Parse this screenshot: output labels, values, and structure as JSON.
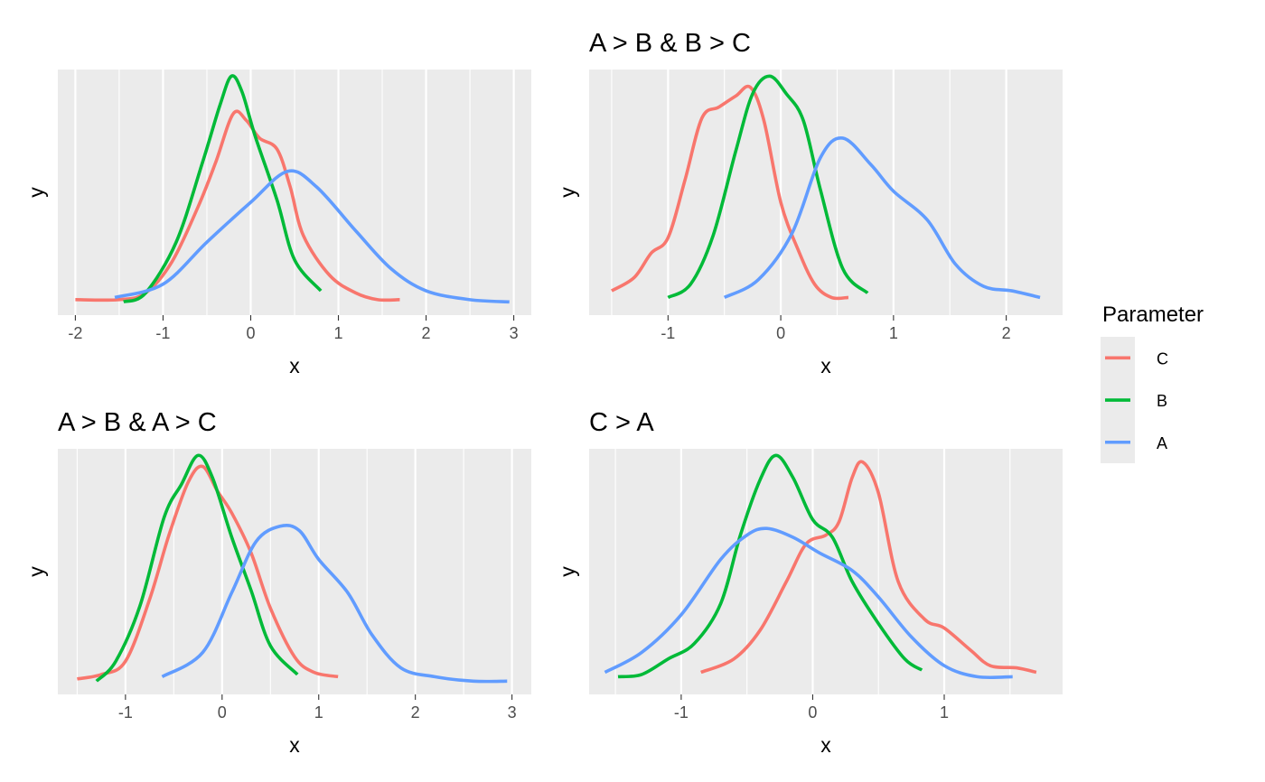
{
  "chart_data": {
    "type": "line",
    "facets": [
      {
        "title": "",
        "xlabel": "x",
        "ylabel": "y",
        "xlim": [
          -2.2,
          3.2
        ],
        "ylim": [
          -0.06,
          1.05
        ],
        "xticks": [
          -2,
          -1,
          0,
          1,
          2,
          3
        ],
        "series": [
          {
            "name": "C",
            "color": "#F8766D",
            "points": [
              [
                -2.0,
                0.01
              ],
              [
                -1.5,
                0.01
              ],
              [
                -1.2,
                0.04
              ],
              [
                -0.9,
                0.18
              ],
              [
                -0.6,
                0.43
              ],
              [
                -0.4,
                0.63
              ],
              [
                -0.2,
                0.85
              ],
              [
                -0.05,
                0.82
              ],
              [
                0.1,
                0.74
              ],
              [
                0.3,
                0.69
              ],
              [
                0.45,
                0.52
              ],
              [
                0.6,
                0.3
              ],
              [
                0.9,
                0.12
              ],
              [
                1.2,
                0.04
              ],
              [
                1.45,
                0.01
              ],
              [
                1.7,
                0.01
              ]
            ]
          },
          {
            "name": "B",
            "color": "#00BA38",
            "points": [
              [
                -1.45,
                0.0
              ],
              [
                -1.2,
                0.04
              ],
              [
                -0.85,
                0.27
              ],
              [
                -0.55,
                0.63
              ],
              [
                -0.35,
                0.89
              ],
              [
                -0.22,
                1.02
              ],
              [
                -0.1,
                0.95
              ],
              [
                0.05,
                0.75
              ],
              [
                0.3,
                0.46
              ],
              [
                0.5,
                0.19
              ],
              [
                0.8,
                0.05
              ]
            ]
          },
          {
            "name": "A",
            "color": "#619CFF",
            "points": [
              [
                -1.55,
                0.02
              ],
              [
                -1.0,
                0.08
              ],
              [
                -0.5,
                0.27
              ],
              [
                0.0,
                0.45
              ],
              [
                0.42,
                0.59
              ],
              [
                0.75,
                0.52
              ],
              [
                1.2,
                0.32
              ],
              [
                1.6,
                0.15
              ],
              [
                2.0,
                0.05
              ],
              [
                2.5,
                0.01
              ],
              [
                2.95,
                0.0
              ]
            ]
          }
        ]
      },
      {
        "title": "A > B & B > C",
        "xlabel": "x",
        "ylabel": "y",
        "xlim": [
          -1.7,
          2.5
        ],
        "ylim": [
          -0.06,
          1.05
        ],
        "xticks": [
          -1,
          0,
          1,
          2
        ],
        "series": [
          {
            "name": "C",
            "color": "#F8766D",
            "points": [
              [
                -1.5,
                0.05
              ],
              [
                -1.3,
                0.11
              ],
              [
                -1.15,
                0.22
              ],
              [
                -1.0,
                0.29
              ],
              [
                -0.85,
                0.55
              ],
              [
                -0.7,
                0.83
              ],
              [
                -0.55,
                0.88
              ],
              [
                -0.4,
                0.93
              ],
              [
                -0.27,
                0.97
              ],
              [
                -0.15,
                0.82
              ],
              [
                0.0,
                0.45
              ],
              [
                0.15,
                0.24
              ],
              [
                0.3,
                0.08
              ],
              [
                0.45,
                0.02
              ],
              [
                0.6,
                0.02
              ]
            ]
          },
          {
            "name": "B",
            "color": "#00BA38",
            "points": [
              [
                -1.0,
                0.02
              ],
              [
                -0.8,
                0.08
              ],
              [
                -0.6,
                0.3
              ],
              [
                -0.4,
                0.68
              ],
              [
                -0.25,
                0.94
              ],
              [
                -0.1,
                1.02
              ],
              [
                0.05,
                0.94
              ],
              [
                0.2,
                0.82
              ],
              [
                0.35,
                0.51
              ],
              [
                0.55,
                0.15
              ],
              [
                0.77,
                0.04
              ]
            ]
          },
          {
            "name": "A",
            "color": "#619CFF",
            "points": [
              [
                -0.5,
                0.02
              ],
              [
                -0.2,
                0.1
              ],
              [
                0.1,
                0.31
              ],
              [
                0.35,
                0.65
              ],
              [
                0.55,
                0.74
              ],
              [
                0.8,
                0.62
              ],
              [
                1.0,
                0.5
              ],
              [
                1.3,
                0.37
              ],
              [
                1.55,
                0.17
              ],
              [
                1.8,
                0.07
              ],
              [
                2.05,
                0.05
              ],
              [
                2.3,
                0.02
              ]
            ]
          }
        ]
      },
      {
        "title": "A > B & A > C",
        "xlabel": "x",
        "ylabel": "y",
        "xlim": [
          -1.7,
          3.2
        ],
        "ylim": [
          -0.06,
          1.05
        ],
        "xticks": [
          -1,
          0,
          1,
          2,
          3
        ],
        "series": [
          {
            "name": "C",
            "color": "#F8766D",
            "points": [
              [
                -1.5,
                0.01
              ],
              [
                -1.25,
                0.03
              ],
              [
                -1.0,
                0.09
              ],
              [
                -0.75,
                0.37
              ],
              [
                -0.55,
                0.66
              ],
              [
                -0.35,
                0.9
              ],
              [
                -0.2,
                0.97
              ],
              [
                -0.05,
                0.86
              ],
              [
                0.1,
                0.76
              ],
              [
                0.3,
                0.58
              ],
              [
                0.5,
                0.33
              ],
              [
                0.75,
                0.11
              ],
              [
                0.95,
                0.04
              ],
              [
                1.2,
                0.02
              ]
            ]
          },
          {
            "name": "B",
            "color": "#00BA38",
            "points": [
              [
                -1.3,
                0.0
              ],
              [
                -1.1,
                0.09
              ],
              [
                -0.85,
                0.34
              ],
              [
                -0.6,
                0.74
              ],
              [
                -0.42,
                0.89
              ],
              [
                -0.25,
                1.02
              ],
              [
                -0.1,
                0.92
              ],
              [
                0.1,
                0.65
              ],
              [
                0.3,
                0.41
              ],
              [
                0.5,
                0.16
              ],
              [
                0.78,
                0.03
              ]
            ]
          },
          {
            "name": "A",
            "color": "#619CFF",
            "points": [
              [
                -0.62,
                0.02
              ],
              [
                -0.2,
                0.13
              ],
              [
                0.1,
                0.4
              ],
              [
                0.35,
                0.63
              ],
              [
                0.6,
                0.7
              ],
              [
                0.8,
                0.68
              ],
              [
                1.0,
                0.55
              ],
              [
                1.3,
                0.4
              ],
              [
                1.55,
                0.21
              ],
              [
                1.85,
                0.06
              ],
              [
                2.2,
                0.02
              ],
              [
                2.6,
                0.0
              ],
              [
                2.95,
                0.0
              ]
            ]
          }
        ]
      },
      {
        "title": "C > A",
        "xlabel": "x",
        "ylabel": "y",
        "xlim": [
          -1.7,
          1.9
        ],
        "ylim": [
          -0.06,
          1.05
        ],
        "xticks": [
          -1,
          0,
          1
        ],
        "series": [
          {
            "name": "C",
            "color": "#F8766D",
            "points": [
              [
                -0.85,
                0.04
              ],
              [
                -0.6,
                0.1
              ],
              [
                -0.4,
                0.23
              ],
              [
                -0.2,
                0.45
              ],
              [
                -0.05,
                0.62
              ],
              [
                0.1,
                0.66
              ],
              [
                0.2,
                0.72
              ],
              [
                0.3,
                0.92
              ],
              [
                0.38,
                0.99
              ],
              [
                0.5,
                0.85
              ],
              [
                0.65,
                0.45
              ],
              [
                0.85,
                0.28
              ],
              [
                1.0,
                0.24
              ],
              [
                1.2,
                0.14
              ],
              [
                1.35,
                0.07
              ],
              [
                1.55,
                0.06
              ],
              [
                1.7,
                0.04
              ]
            ]
          },
          {
            "name": "B",
            "color": "#00BA38",
            "points": [
              [
                -1.48,
                0.02
              ],
              [
                -1.3,
                0.03
              ],
              [
                -1.1,
                0.1
              ],
              [
                -0.9,
                0.17
              ],
              [
                -0.7,
                0.35
              ],
              [
                -0.55,
                0.66
              ],
              [
                -0.4,
                0.91
              ],
              [
                -0.28,
                1.02
              ],
              [
                -0.15,
                0.92
              ],
              [
                0.0,
                0.73
              ],
              [
                0.15,
                0.65
              ],
              [
                0.3,
                0.45
              ],
              [
                0.5,
                0.26
              ],
              [
                0.7,
                0.1
              ],
              [
                0.83,
                0.05
              ]
            ]
          },
          {
            "name": "A",
            "color": "#619CFF",
            "points": [
              [
                -1.58,
                0.04
              ],
              [
                -1.3,
                0.13
              ],
              [
                -1.0,
                0.3
              ],
              [
                -0.7,
                0.55
              ],
              [
                -0.5,
                0.66
              ],
              [
                -0.35,
                0.69
              ],
              [
                -0.15,
                0.65
              ],
              [
                0.05,
                0.58
              ],
              [
                0.3,
                0.5
              ],
              [
                0.5,
                0.38
              ],
              [
                0.75,
                0.2
              ],
              [
                1.0,
                0.07
              ],
              [
                1.25,
                0.02
              ],
              [
                1.52,
                0.02
              ]
            ]
          }
        ]
      }
    ],
    "legend": {
      "title": "Parameter",
      "position": "right",
      "entries": [
        {
          "label": "C",
          "color": "#F8766D"
        },
        {
          "label": "B",
          "color": "#00BA38"
        },
        {
          "label": "A",
          "color": "#619CFF"
        }
      ]
    },
    "grid": true
  }
}
